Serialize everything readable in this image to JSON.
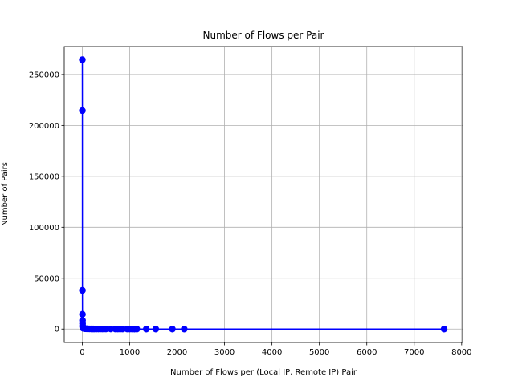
{
  "chart_data": {
    "type": "line",
    "title": "Number of Flows per Pair",
    "xlabel": "Number of Flows per (Local IP, Remote IP) Pair",
    "ylabel": "Number of Pairs",
    "xlim": [
      -380,
      8020
    ],
    "ylim": [
      -13200,
      277500
    ],
    "xticks": [
      0,
      1000,
      2000,
      3000,
      4000,
      5000,
      6000,
      7000,
      8000
    ],
    "xtick_labels": [
      "0",
      "1000",
      "2000",
      "3000",
      "4000",
      "5000",
      "6000",
      "7000",
      "8000"
    ],
    "yticks": [
      0,
      50000,
      100000,
      150000,
      200000,
      250000
    ],
    "ytick_labels": [
      "0",
      "50000",
      "100000",
      "150000",
      "200000",
      "250000"
    ],
    "grid": true,
    "series": [
      {
        "color": "#0000ff",
        "marker": "circle",
        "x": [
          1,
          2,
          3,
          4,
          5,
          6,
          7,
          8,
          10,
          12,
          15,
          20,
          30,
          40,
          50,
          60,
          80,
          100,
          120,
          150,
          180,
          200,
          230,
          260,
          300,
          340,
          380,
          420,
          460,
          500,
          600,
          700,
          750,
          800,
          850,
          950,
          1000,
          1050,
          1100,
          1150,
          1350,
          1550,
          1900,
          2150,
          7630
        ],
        "y": [
          264500,
          214500,
          38000,
          14500,
          8500,
          5500,
          3500,
          2500,
          1800,
          1300,
          1000,
          800,
          600,
          500,
          400,
          350,
          300,
          250,
          200,
          150,
          120,
          100,
          90,
          80,
          70,
          60,
          50,
          40,
          35,
          30,
          25,
          20,
          18,
          15,
          12,
          10,
          8,
          6,
          5,
          4,
          3,
          3,
          2,
          2,
          1
        ]
      }
    ]
  }
}
